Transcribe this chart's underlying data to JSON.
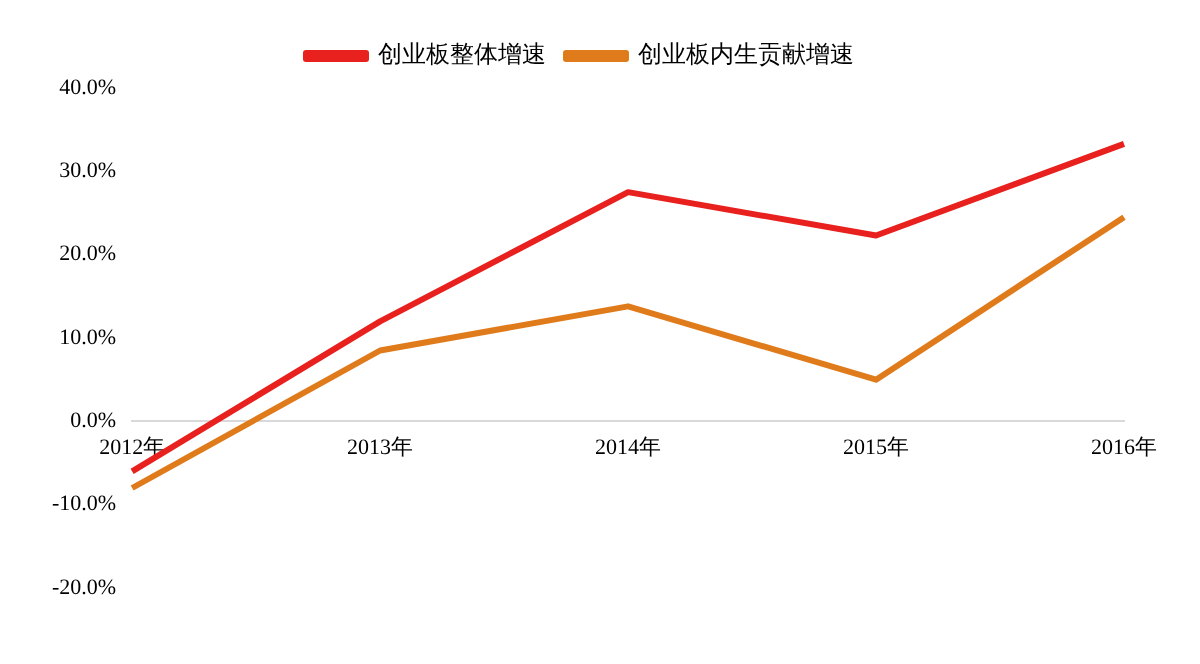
{
  "chart_data": {
    "type": "line",
    "categories": [
      "2012年",
      "2013年",
      "2014年",
      "2015年",
      "2016年"
    ],
    "series": [
      {
        "name": "创业板整体增速",
        "color": "#e8201e",
        "values": [
          -6,
          12,
          27.5,
          22.3,
          33.3
        ]
      },
      {
        "name": "创业板内生贡献增速",
        "color": "#e07b1c",
        "values": [
          -8,
          8.5,
          13.8,
          5,
          24.5
        ]
      }
    ],
    "ylim": [
      -20,
      40
    ],
    "yticks": [
      {
        "value": -20,
        "label": "-20.0%"
      },
      {
        "value": -10,
        "label": "-10.0%"
      },
      {
        "value": 0,
        "label": "0.0%"
      },
      {
        "value": 10,
        "label": "10.0%"
      },
      {
        "value": 20,
        "label": "20.0%"
      },
      {
        "value": 30,
        "label": "30.0%"
      },
      {
        "value": 40,
        "label": "40.0%"
      }
    ],
    "grid": false,
    "legend": "top",
    "marker": "none",
    "line_style": "solid"
  }
}
